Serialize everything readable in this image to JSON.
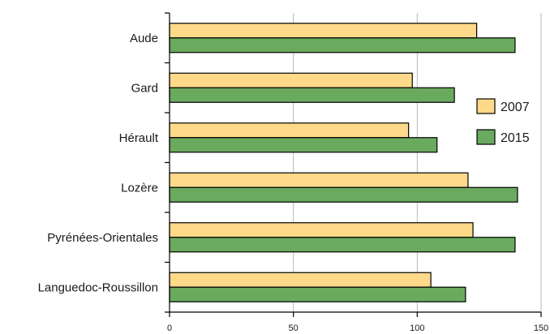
{
  "chart_data": {
    "type": "bar",
    "orientation": "horizontal",
    "categories": [
      "Aude",
      "Gard",
      "Hérault",
      "Lozère",
      "Pyrénées-Orientales",
      "Languedoc-Roussillon"
    ],
    "series": [
      {
        "name": "2007",
        "color": "#ffd98a",
        "values": [
          124,
          98,
          96.5,
          120.5,
          122.5,
          105.5
        ]
      },
      {
        "name": "2015",
        "color": "#6aaa5e",
        "values": [
          139.5,
          115,
          108,
          140.5,
          139.5,
          119.5
        ]
      }
    ],
    "xlim": [
      0,
      150
    ],
    "xticks": [
      0,
      50,
      100,
      150
    ],
    "grid": "vertical",
    "legend": "right"
  }
}
